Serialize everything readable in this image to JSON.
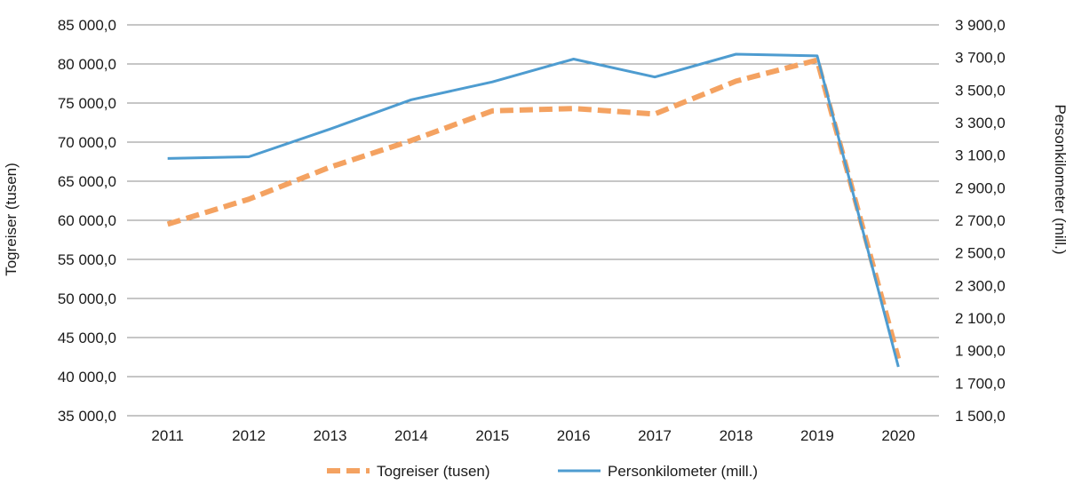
{
  "chart_data": {
    "type": "line",
    "dual_axis": true,
    "categories": [
      "2011",
      "2012",
      "2013",
      "2014",
      "2015",
      "2016",
      "2017",
      "2018",
      "2019",
      "2020"
    ],
    "y_left": {
      "label": "Togreiser (tusen)",
      "ylim": [
        35000,
        85000
      ],
      "ticks": [
        35000,
        40000,
        45000,
        50000,
        55000,
        60000,
        65000,
        70000,
        75000,
        80000,
        85000
      ],
      "tick_labels": [
        "35 000,0",
        "40 000,0",
        "45 000,0",
        "50 000,0",
        "55 000,0",
        "60 000,0",
        "65 000,0",
        "70 000,0",
        "75 000,0",
        "80 000,0",
        "85 000,0"
      ]
    },
    "y_right": {
      "label": "Personkilometer (mill.)",
      "ylim": [
        1500,
        3900
      ],
      "ticks": [
        1500,
        1700,
        1900,
        2100,
        2300,
        2500,
        2700,
        2900,
        3100,
        3300,
        3500,
        3700,
        3900
      ],
      "tick_labels": [
        "1 500,0",
        "1 700,0",
        "1 900,0",
        "2 100,0",
        "2 300,0",
        "2 500,0",
        "2 700,0",
        "2 900,0",
        "3 100,0",
        "3 300,0",
        "3 500,0",
        "3 700,0",
        "3 900,0"
      ]
    },
    "series": [
      {
        "name": "Togreiser (tusen)",
        "axis": "left",
        "style": "dashed",
        "color": "#F4A261",
        "values": [
          59500,
          62700,
          66800,
          70200,
          74000,
          74300,
          73600,
          77800,
          80500,
          42300
        ]
      },
      {
        "name": "Personkilometer (mill.)",
        "axis": "right",
        "style": "solid",
        "color": "#4E9CD0",
        "values": [
          3080,
          3090,
          3260,
          3440,
          3550,
          3690,
          3580,
          3720,
          3710,
          1800
        ]
      }
    ],
    "grid": true,
    "legend_position": "bottom-center"
  }
}
